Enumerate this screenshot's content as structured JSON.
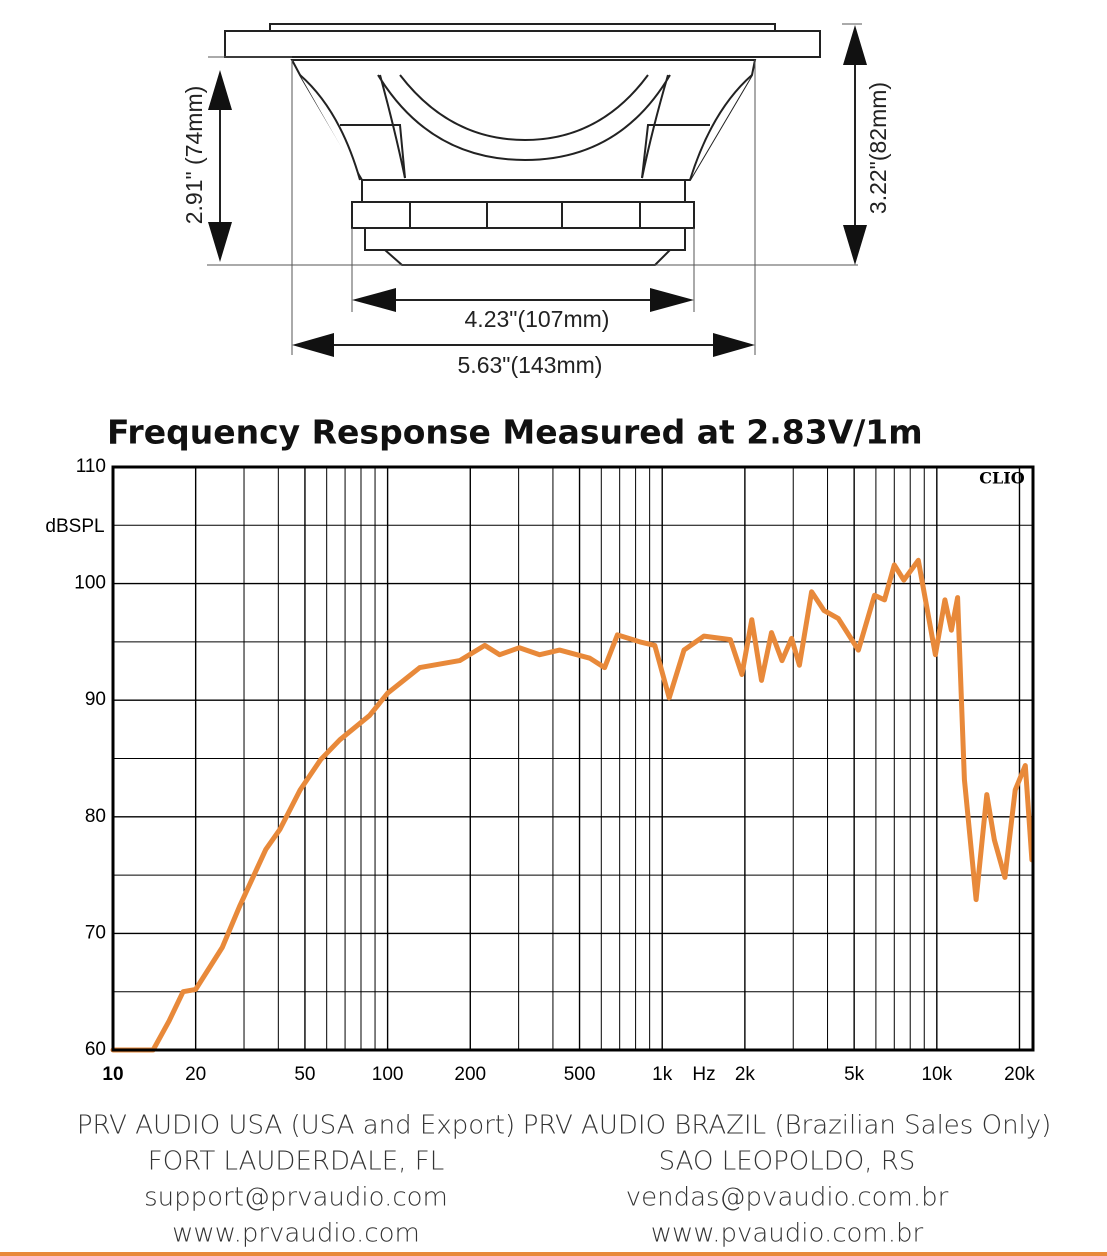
{
  "diagram": {
    "dimensions": [
      "2.91\" (74mm)",
      "3.22\"(82mm)",
      "4.23\"(107mm)",
      "5.63\"(143mm)"
    ]
  },
  "chart_data": {
    "type": "line",
    "title": "Frequency Response Measured at 2.83V/1m",
    "y_label": "dBSPL",
    "x_label": "Hz",
    "watermark": "CLIO",
    "x_scale": "log",
    "grid": true,
    "color": "#e8893a",
    "x": [
      10,
      14,
      16,
      18,
      20,
      25,
      29,
      36,
      40.5,
      48,
      57,
      67,
      86,
      100,
      131,
      183,
      226,
      256,
      302,
      358,
      423,
      545,
      617,
      687,
      830,
      940,
      1060,
      1200,
      1420,
      1770,
      1950,
      2120,
      2300,
      2500,
      2730,
      2960,
      3160,
      3500,
      3880,
      4380,
      5180,
      5930,
      6450,
      7000,
      7580,
      8560,
      9880,
      10700,
      11300,
      11900,
      12600,
      13900,
      15200,
      16200,
      17700,
      19300,
      21000,
      22200
    ],
    "values": [
      60,
      60,
      62.5,
      65,
      65.2,
      68.8,
      72.4,
      77.2,
      78.9,
      82.3,
      84.9,
      86.6,
      88.7,
      90.6,
      92.8,
      93.4,
      94.7,
      93.9,
      94.5,
      93.9,
      94.3,
      93.6,
      92.8,
      95.6,
      95,
      94.7,
      90.2,
      94.3,
      95.5,
      95.2,
      92.2,
      96.9,
      91.7,
      95.8,
      93.4,
      95.3,
      93,
      99.3,
      97.7,
      97,
      94.3,
      99,
      98.6,
      101.6,
      100.3,
      102,
      93.9,
      98.6,
      96,
      98.8,
      83.2,
      72.9,
      81.9,
      78,
      74.8,
      82.3,
      84.4,
      76.3
    ],
    "xlim": [
      10,
      22400
    ],
    "ylim": [
      60,
      110
    ],
    "xticks": [
      10,
      20,
      50,
      100,
      200,
      500,
      {
        "value": 1000,
        "label": "1k"
      },
      {
        "value": 2000,
        "label": "2k"
      },
      {
        "value": 5000,
        "label": "5k"
      },
      {
        "value": 10000,
        "label": "10k"
      },
      {
        "value": 20000,
        "label": "20k"
      }
    ],
    "yticks": [
      60,
      70,
      80,
      90,
      100,
      110
    ],
    "xgrid": [
      30,
      40,
      60,
      70,
      80,
      90,
      300,
      400,
      600,
      700,
      800,
      900,
      3000,
      4000,
      6000,
      7000,
      8000,
      9000
    ],
    "ygrid": [
      65,
      75,
      85,
      95,
      105
    ]
  },
  "footer": {
    "columns": [
      [
        "PRV AUDIO USA  (USA and Export)",
        "FORT LAUDERDALE, FL",
        "support@prvaudio.com",
        "www.prvaudio.com"
      ],
      [
        "PRV AUDIO BRAZIL (Brazilian Sales Only)",
        "SAO LEOPOLDO, RS",
        "vendas@pvaudio.com.br",
        "www.pvaudio.com.br"
      ]
    ]
  }
}
